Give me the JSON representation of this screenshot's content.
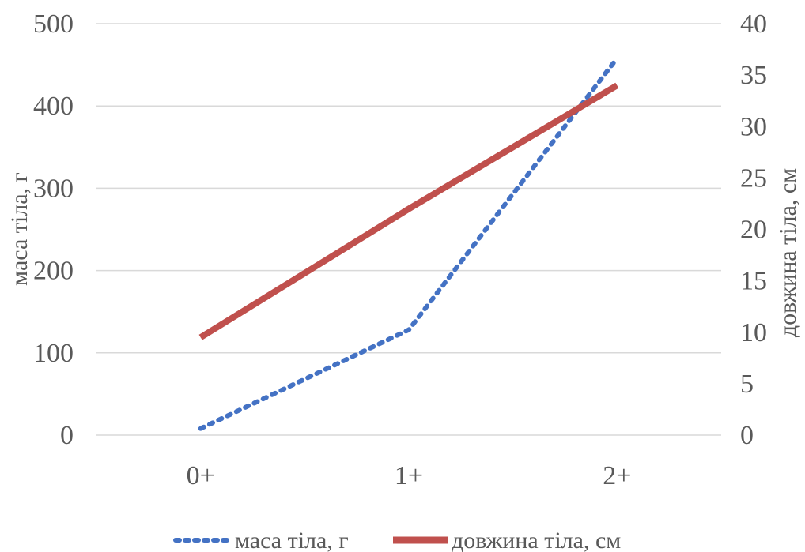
{
  "chart_data": {
    "type": "line",
    "categories": [
      "0+",
      "1+",
      "2+"
    ],
    "series": [
      {
        "name": "маса тіла, г",
        "axis": "left",
        "values": [
          8,
          128,
          458
        ],
        "color": "#4472C4",
        "style": "dotted"
      },
      {
        "name": "довжина тіла, см",
        "axis": "right",
        "values": [
          9.5,
          22,
          34
        ],
        "color": "#C0504D",
        "style": "solid"
      }
    ],
    "y_left": {
      "label": "маса тіла, г",
      "ticks": [
        "0",
        "100",
        "200",
        "300",
        "400",
        "500"
      ],
      "ylim": [
        0,
        500
      ]
    },
    "y_right": {
      "label": "довжина тіла, см",
      "ticks": [
        "0",
        "5",
        "10",
        "15",
        "20",
        "25",
        "30",
        "35",
        "40"
      ],
      "ylim": [
        0,
        40
      ]
    },
    "grid": true,
    "legend": "bottom"
  }
}
